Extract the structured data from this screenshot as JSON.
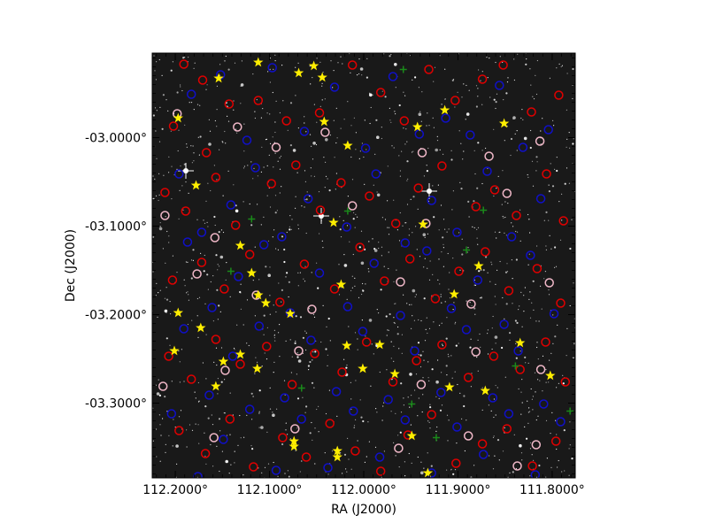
{
  "chart_data": {
    "type": "scatter",
    "title": "",
    "xlabel": "RA (J2000)",
    "ylabel": "Dec (J2000)",
    "xlim": [
      112.2245,
      111.7755
    ],
    "ylim": [
      -3.3845,
      -2.9045
    ],
    "x_inverted": true,
    "grid": false,
    "background": "star-field image (black sky with white point sources)",
    "x_ticks": [
      {
        "value": 112.2,
        "label": "112.2000°"
      },
      {
        "value": 112.1,
        "label": "112.1000°"
      },
      {
        "value": 112.0,
        "label": "112.0000°"
      },
      {
        "value": 111.9,
        "label": "111.9000°"
      },
      {
        "value": 111.8,
        "label": "111.8000°"
      }
    ],
    "y_ticks": [
      {
        "value": -3.0,
        "label": "-03.0000°"
      },
      {
        "value": -3.1,
        "label": "-03.1000°"
      },
      {
        "value": -3.2,
        "label": "-03.2000°"
      },
      {
        "value": -3.3,
        "label": "-03.3000°"
      }
    ],
    "series": [
      {
        "marker": "circle-open",
        "color": "#e00000",
        "points": [
          [
            112.191,
            -2.917
          ],
          [
            112.171,
            -2.935
          ],
          [
            112.202,
            -2.987
          ],
          [
            112.167,
            -3.017
          ],
          [
            112.143,
            -2.962
          ],
          [
            112.112,
            -2.958
          ],
          [
            112.082,
            -2.981
          ],
          [
            112.047,
            -2.972
          ],
          [
            112.012,
            -2.918
          ],
          [
            111.982,
            -2.949
          ],
          [
            111.957,
            -2.981
          ],
          [
            111.931,
            -2.923
          ],
          [
            111.903,
            -2.958
          ],
          [
            111.874,
            -2.934
          ],
          [
            111.852,
            -2.918
          ],
          [
            111.822,
            -2.971
          ],
          [
            111.793,
            -2.952
          ],
          [
            112.211,
            -3.062
          ],
          [
            112.189,
            -3.083
          ],
          [
            112.157,
            -3.045
          ],
          [
            112.136,
            -3.099
          ],
          [
            112.098,
            -3.052
          ],
          [
            112.072,
            -3.031
          ],
          [
            112.046,
            -3.082
          ],
          [
            112.024,
            -3.051
          ],
          [
            111.994,
            -3.066
          ],
          [
            111.966,
            -3.097
          ],
          [
            111.942,
            -3.057
          ],
          [
            111.917,
            -3.032
          ],
          [
            111.881,
            -3.078
          ],
          [
            111.861,
            -3.059
          ],
          [
            111.838,
            -3.088
          ],
          [
            111.806,
            -3.041
          ],
          [
            111.788,
            -3.094
          ],
          [
            112.203,
            -3.161
          ],
          [
            112.172,
            -3.141
          ],
          [
            112.148,
            -3.171
          ],
          [
            112.121,
            -3.132
          ],
          [
            112.089,
            -3.186
          ],
          [
            112.063,
            -3.143
          ],
          [
            112.031,
            -3.171
          ],
          [
            112.004,
            -3.124
          ],
          [
            111.978,
            -3.162
          ],
          [
            111.951,
            -3.137
          ],
          [
            111.924,
            -3.182
          ],
          [
            111.899,
            -3.151
          ],
          [
            111.871,
            -3.129
          ],
          [
            111.846,
            -3.173
          ],
          [
            111.816,
            -3.148
          ],
          [
            111.791,
            -3.187
          ],
          [
            112.207,
            -3.247
          ],
          [
            112.183,
            -3.273
          ],
          [
            112.157,
            -3.228
          ],
          [
            112.131,
            -3.256
          ],
          [
            112.103,
            -3.236
          ],
          [
            112.076,
            -3.279
          ],
          [
            112.052,
            -3.244
          ],
          [
            112.023,
            -3.265
          ],
          [
            111.997,
            -3.231
          ],
          [
            111.969,
            -3.276
          ],
          [
            111.944,
            -3.252
          ],
          [
            111.917,
            -3.234
          ],
          [
            111.889,
            -3.271
          ],
          [
            111.862,
            -3.247
          ],
          [
            111.834,
            -3.262
          ],
          [
            111.807,
            -3.231
          ],
          [
            111.786,
            -3.276
          ],
          [
            112.196,
            -3.331
          ],
          [
            112.168,
            -3.357
          ],
          [
            112.142,
            -3.318
          ],
          [
            112.117,
            -3.372
          ],
          [
            112.086,
            -3.339
          ],
          [
            112.061,
            -3.361
          ],
          [
            112.036,
            -3.323
          ],
          [
            112.009,
            -3.354
          ],
          [
            111.982,
            -3.377
          ],
          [
            111.953,
            -3.336
          ],
          [
            111.928,
            -3.313
          ],
          [
            111.902,
            -3.368
          ],
          [
            111.874,
            -3.346
          ],
          [
            111.848,
            -3.329
          ],
          [
            111.821,
            -3.371
          ],
          [
            111.796,
            -3.343
          ]
        ]
      },
      {
        "marker": "circle-open",
        "color": "#1010c8",
        "points": [
          [
            112.183,
            -2.951
          ],
          [
            112.152,
            -2.929
          ],
          [
            112.124,
            -3.003
          ],
          [
            112.097,
            -2.921
          ],
          [
            112.063,
            -2.993
          ],
          [
            112.031,
            -2.943
          ],
          [
            111.998,
            -3.012
          ],
          [
            111.969,
            -2.931
          ],
          [
            111.941,
            -2.996
          ],
          [
            111.913,
            -2.978
          ],
          [
            111.887,
            -2.997
          ],
          [
            111.856,
            -2.941
          ],
          [
            111.831,
            -3.011
          ],
          [
            111.804,
            -2.991
          ],
          [
            112.196,
            -3.041
          ],
          [
            112.172,
            -3.107
          ],
          [
            112.141,
            -3.076
          ],
          [
            112.115,
            -3.034
          ],
          [
            112.087,
            -3.112
          ],
          [
            112.059,
            -3.069
          ],
          [
            112.018,
            -3.101
          ],
          [
            111.987,
            -3.041
          ],
          [
            111.956,
            -3.119
          ],
          [
            111.928,
            -3.071
          ],
          [
            111.901,
            -3.107
          ],
          [
            111.869,
            -3.038
          ],
          [
            111.843,
            -3.112
          ],
          [
            111.812,
            -3.069
          ],
          [
            112.187,
            -3.118
          ],
          [
            112.161,
            -3.192
          ],
          [
            112.133,
            -3.157
          ],
          [
            112.106,
            -3.121
          ],
          [
            112.078,
            -3.198
          ],
          [
            112.047,
            -3.153
          ],
          [
            112.017,
            -3.191
          ],
          [
            111.989,
            -3.142
          ],
          [
            111.961,
            -3.201
          ],
          [
            111.933,
            -3.128
          ],
          [
            111.907,
            -3.193
          ],
          [
            111.879,
            -3.161
          ],
          [
            111.851,
            -3.211
          ],
          [
            111.823,
            -3.133
          ],
          [
            111.798,
            -3.199
          ],
          [
            112.191,
            -3.216
          ],
          [
            112.164,
            -3.291
          ],
          [
            112.139,
            -3.247
          ],
          [
            112.111,
            -3.213
          ],
          [
            112.084,
            -3.294
          ],
          [
            112.056,
            -3.229
          ],
          [
            112.029,
            -3.287
          ],
          [
            112.001,
            -3.219
          ],
          [
            111.974,
            -3.296
          ],
          [
            111.946,
            -3.241
          ],
          [
            111.918,
            -3.288
          ],
          [
            111.891,
            -3.217
          ],
          [
            111.863,
            -3.294
          ],
          [
            111.836,
            -3.241
          ],
          [
            111.809,
            -3.301
          ],
          [
            112.204,
            -3.312
          ],
          [
            112.176,
            -3.383
          ],
          [
            112.149,
            -3.341
          ],
          [
            112.121,
            -3.307
          ],
          [
            112.093,
            -3.376
          ],
          [
            112.066,
            -3.318
          ],
          [
            112.038,
            -3.373
          ],
          [
            112.011,
            -3.309
          ],
          [
            111.983,
            -3.361
          ],
          [
            111.956,
            -3.319
          ],
          [
            111.928,
            -3.379
          ],
          [
            111.901,
            -3.327
          ],
          [
            111.873,
            -3.358
          ],
          [
            111.846,
            -3.312
          ],
          [
            111.818,
            -3.381
          ],
          [
            111.791,
            -3.321
          ]
        ]
      },
      {
        "marker": "circle-open",
        "color": "#f0b8c8",
        "points": [
          [
            112.198,
            -2.973
          ],
          [
            112.134,
            -2.988
          ],
          [
            112.093,
            -3.011
          ],
          [
            112.041,
            -2.994
          ],
          [
            111.938,
            -3.017
          ],
          [
            111.867,
            -3.021
          ],
          [
            111.813,
            -3.004
          ],
          [
            112.211,
            -3.088
          ],
          [
            112.158,
            -3.113
          ],
          [
            112.012,
            -3.077
          ],
          [
            111.934,
            -3.097
          ],
          [
            111.848,
            -3.063
          ],
          [
            112.177,
            -3.154
          ],
          [
            112.114,
            -3.178
          ],
          [
            112.055,
            -3.194
          ],
          [
            111.961,
            -3.163
          ],
          [
            111.886,
            -3.188
          ],
          [
            111.803,
            -3.164
          ],
          [
            112.213,
            -3.281
          ],
          [
            112.147,
            -3.263
          ],
          [
            112.069,
            -3.241
          ],
          [
            111.939,
            -3.279
          ],
          [
            111.881,
            -3.242
          ],
          [
            111.812,
            -3.262
          ],
          [
            112.159,
            -3.339
          ],
          [
            112.073,
            -3.329
          ],
          [
            111.963,
            -3.351
          ],
          [
            111.889,
            -3.337
          ],
          [
            111.817,
            -3.347
          ],
          [
            111.837,
            -3.371
          ]
        ]
      },
      {
        "marker": "star",
        "color": "#ffee00",
        "points": [
          [
            112.154,
            -2.933
          ],
          [
            112.112,
            -2.915
          ],
          [
            112.197,
            -2.978
          ],
          [
            112.069,
            -2.927
          ],
          [
            112.053,
            -2.919
          ],
          [
            112.044,
            -2.932
          ],
          [
            112.042,
            -2.982
          ],
          [
            112.017,
            -3.009
          ],
          [
            111.943,
            -2.988
          ],
          [
            111.914,
            -2.969
          ],
          [
            111.851,
            -2.984
          ],
          [
            112.178,
            -3.054
          ],
          [
            112.032,
            -3.096
          ],
          [
            112.131,
            -3.122
          ],
          [
            111.937,
            -3.098
          ],
          [
            111.878,
            -3.145
          ],
          [
            112.119,
            -3.153
          ],
          [
            112.024,
            -3.166
          ],
          [
            111.904,
            -3.177
          ],
          [
            112.112,
            -3.178
          ],
          [
            112.104,
            -3.187
          ],
          [
            112.197,
            -3.198
          ],
          [
            112.078,
            -3.199
          ],
          [
            112.173,
            -3.215
          ],
          [
            112.018,
            -3.235
          ],
          [
            111.983,
            -3.234
          ],
          [
            111.834,
            -3.232
          ],
          [
            112.131,
            -3.245
          ],
          [
            112.149,
            -3.253
          ],
          [
            112.001,
            -3.261
          ],
          [
            112.113,
            -3.261
          ],
          [
            111.967,
            -3.267
          ],
          [
            112.157,
            -3.281
          ],
          [
            111.909,
            -3.282
          ],
          [
            111.871,
            -3.286
          ],
          [
            112.201,
            -3.241
          ],
          [
            111.949,
            -3.337
          ],
          [
            112.074,
            -3.343
          ],
          [
            112.074,
            -3.349
          ],
          [
            112.028,
            -3.354
          ],
          [
            112.028,
            -3.361
          ],
          [
            111.932,
            -3.379
          ],
          [
            111.802,
            -3.269
          ]
        ]
      },
      {
        "marker": "plus",
        "color": "#1a8a1a",
        "points": [
          [
            111.958,
            -2.923
          ],
          [
            112.017,
            -3.083
          ],
          [
            111.873,
            -3.082
          ],
          [
            112.119,
            -3.092
          ],
          [
            111.891,
            -3.127
          ],
          [
            112.141,
            -3.151
          ],
          [
            112.066,
            -3.283
          ],
          [
            111.949,
            -3.301
          ],
          [
            111.839,
            -3.258
          ],
          [
            111.923,
            -3.339
          ],
          [
            111.781,
            -3.309
          ]
        ]
      }
    ]
  }
}
